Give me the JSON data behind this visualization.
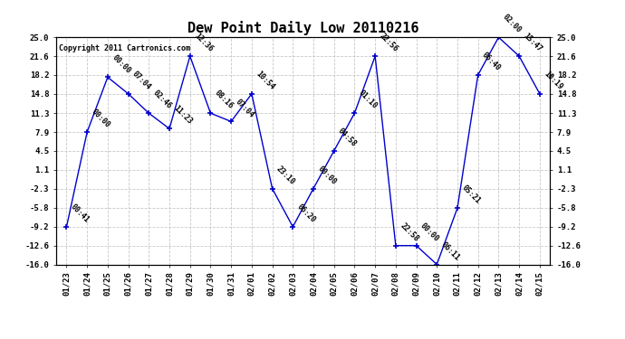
{
  "title": "Dew Point Daily Low 20110216",
  "copyright": "Copyright 2011 Cartronics.com",
  "x_labels": [
    "01/23",
    "01/24",
    "01/25",
    "01/26",
    "01/27",
    "01/28",
    "01/29",
    "01/30",
    "01/31",
    "02/01",
    "02/02",
    "02/03",
    "02/04",
    "02/05",
    "02/06",
    "02/07",
    "02/08",
    "02/09",
    "02/10",
    "02/11",
    "02/12",
    "02/13",
    "02/14",
    "02/15"
  ],
  "y_values": [
    -9.2,
    7.9,
    17.8,
    14.8,
    11.3,
    8.5,
    21.6,
    11.3,
    9.8,
    14.8,
    -2.3,
    -9.2,
    -2.3,
    4.5,
    11.3,
    21.6,
    -12.6,
    -12.6,
    -16.0,
    -5.8,
    18.2,
    25.0,
    21.6,
    14.8
  ],
  "point_labels": [
    "00:41",
    "00:00",
    "00:00",
    "07:04",
    "02:46",
    "11:23",
    "12:36",
    "08:16",
    "07:04",
    "10:54",
    "23:10",
    "06:20",
    "00:00",
    "04:58",
    "01:10",
    "22:56",
    "22:58",
    "00:00",
    "06:11",
    "05:21",
    "06:40",
    "02:00",
    "15:47",
    "10:19"
  ],
  "line_color": "#0000cc",
  "marker_color": "#0000cc",
  "background_color": "#ffffff",
  "grid_color": "#c8c8c8",
  "ylim": [
    -16.0,
    25.0
  ],
  "yticks": [
    25.0,
    21.6,
    18.2,
    14.8,
    11.3,
    7.9,
    4.5,
    1.1,
    -2.3,
    -5.8,
    -9.2,
    -12.6,
    -16.0
  ],
  "title_fontsize": 11,
  "label_fontsize": 6,
  "tick_fontsize": 6.5,
  "copyright_fontsize": 6
}
